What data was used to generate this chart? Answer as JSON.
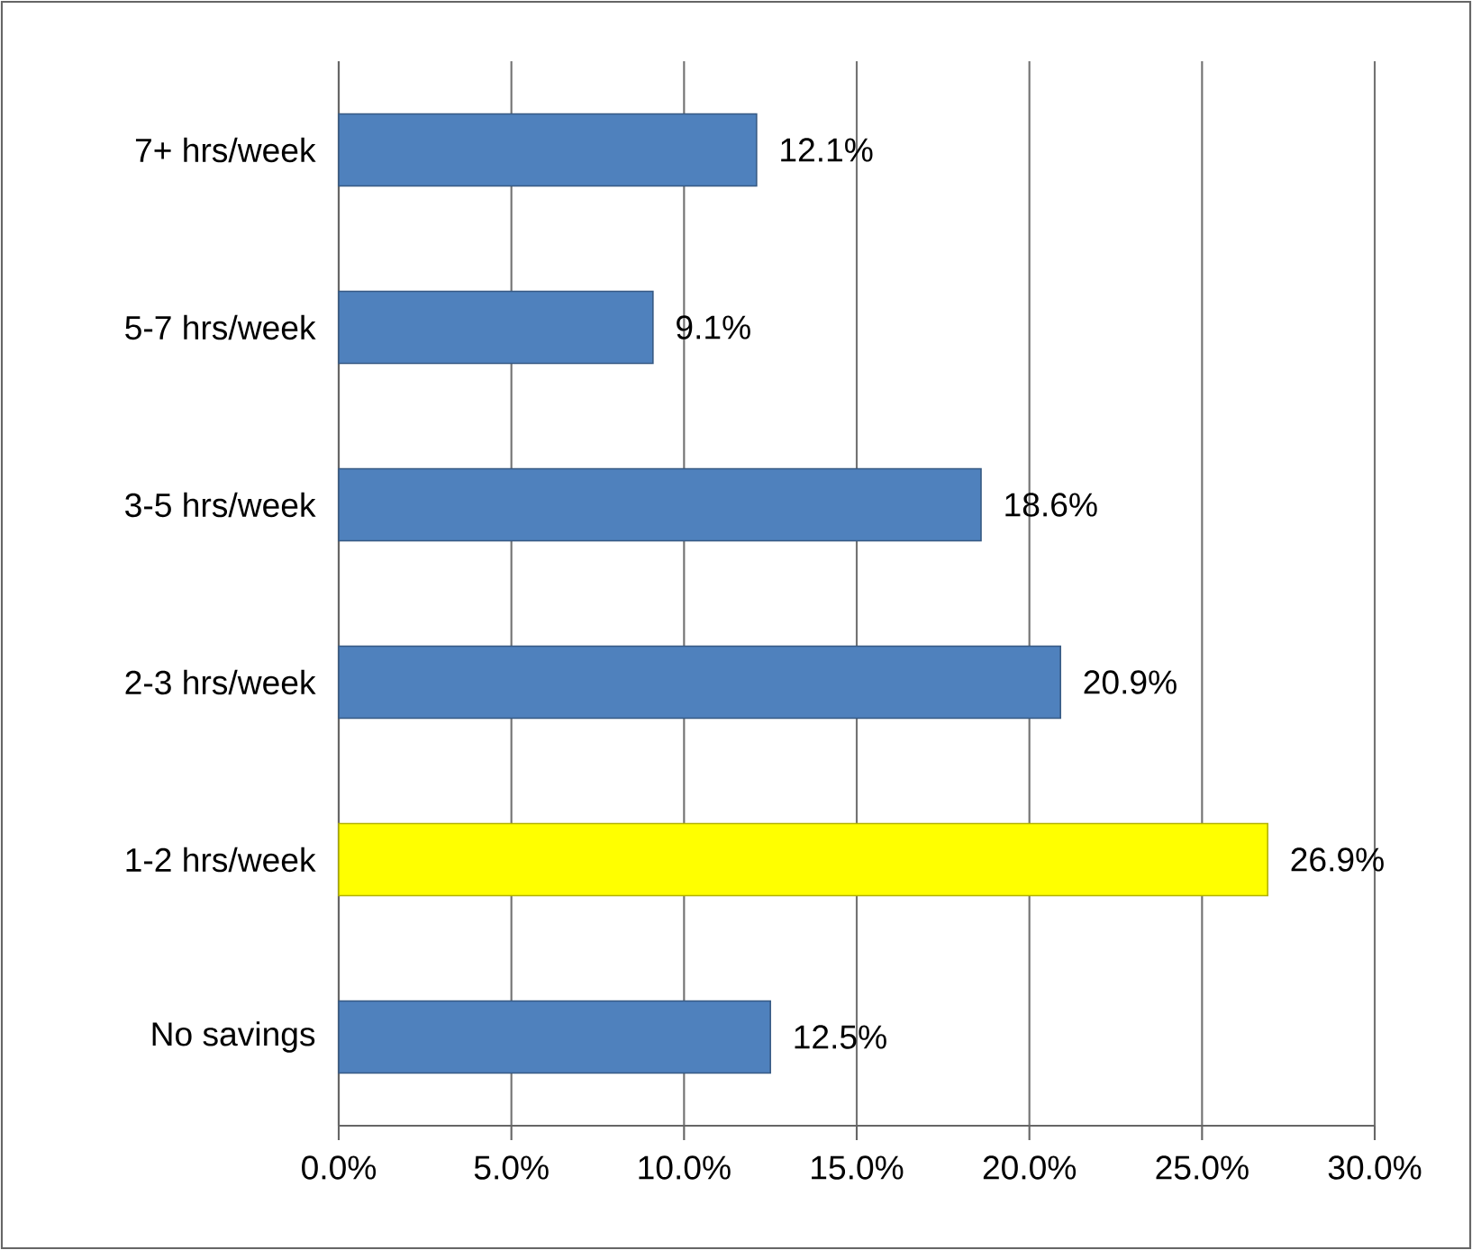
{
  "chart_data": {
    "type": "bar",
    "orientation": "horizontal",
    "categories": [
      "7+ hrs/week",
      "5-7 hrs/week",
      "3-5 hrs/week",
      "2-3 hrs/week",
      "1-2 hrs/week",
      "No savings"
    ],
    "values": [
      12.1,
      9.1,
      18.6,
      20.9,
      26.9,
      12.5
    ],
    "colors": [
      "#4f81bd",
      "#4f81bd",
      "#4f81bd",
      "#4f81bd",
      "#ffff00",
      "#4f81bd"
    ],
    "value_labels": [
      "12.1%",
      "9.1%",
      "18.6%",
      "20.9%",
      "26.9%",
      "12.5%"
    ],
    "xlim": [
      0,
      30
    ],
    "xticks": [
      {
        "value": 0,
        "label": "0.0%"
      },
      {
        "value": 5,
        "label": "5.0%"
      },
      {
        "value": 10,
        "label": "10.0%"
      },
      {
        "value": 15,
        "label": "15.0%"
      },
      {
        "value": 20,
        "label": "20.0%"
      },
      {
        "value": 25,
        "label": "25.0%"
      },
      {
        "value": 30,
        "label": "30.0%"
      }
    ],
    "grid": "x"
  }
}
